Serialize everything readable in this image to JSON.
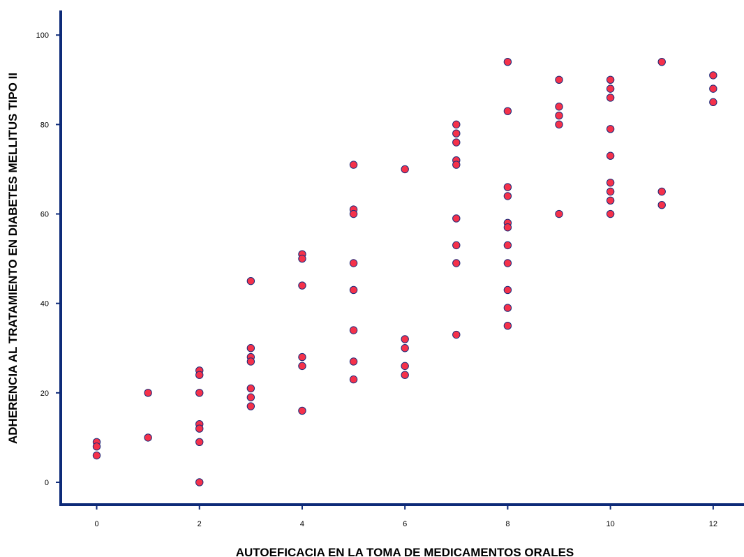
{
  "chart_data": {
    "type": "scatter",
    "title": "",
    "xlabel": "AUTOEFICACIA EN LA TOMA DE MEDICAMENTOS ORALES",
    "ylabel": "ADHERENCIA AL TRATAMIENTO EN DIABETES MELLITUS TIPO II",
    "xlim": [
      -0.7,
      12.6
    ],
    "ylim": [
      -5,
      105.5
    ],
    "xticks": [
      0,
      2,
      4,
      6,
      8,
      10,
      12
    ],
    "yticks": [
      0,
      20,
      40,
      60,
      80,
      100
    ],
    "xtick_labels": [
      "0",
      "2",
      "4",
      "6",
      "8",
      "10",
      "12"
    ],
    "ytick_labels": [
      "0",
      "20",
      "40",
      "60",
      "80",
      "100"
    ],
    "grid": false,
    "legend": "none",
    "marker_color": "#f5314a",
    "marker_edge_color": "#1b2a7a",
    "axis_color": "#0d2a78",
    "points": [
      [
        0,
        9
      ],
      [
        0,
        8
      ],
      [
        0,
        6
      ],
      [
        1,
        20
      ],
      [
        1,
        10
      ],
      [
        2,
        25
      ],
      [
        2,
        24
      ],
      [
        2,
        20
      ],
      [
        2,
        13
      ],
      [
        2,
        12
      ],
      [
        2,
        9
      ],
      [
        2,
        0
      ],
      [
        3,
        45
      ],
      [
        3,
        30
      ],
      [
        3,
        28
      ],
      [
        3,
        27
      ],
      [
        3,
        21
      ],
      [
        3,
        19
      ],
      [
        3,
        17
      ],
      [
        4,
        51
      ],
      [
        4,
        50
      ],
      [
        4,
        44
      ],
      [
        4,
        28
      ],
      [
        4,
        26
      ],
      [
        4,
        16
      ],
      [
        5,
        71
      ],
      [
        5,
        61
      ],
      [
        5,
        60
      ],
      [
        5,
        49
      ],
      [
        5,
        43
      ],
      [
        5,
        34
      ],
      [
        5,
        27
      ],
      [
        5,
        23
      ],
      [
        6,
        70
      ],
      [
        6,
        32
      ],
      [
        6,
        30
      ],
      [
        6,
        26
      ],
      [
        6,
        24
      ],
      [
        7,
        80
      ],
      [
        7,
        78
      ],
      [
        7,
        76
      ],
      [
        7,
        72
      ],
      [
        7,
        71
      ],
      [
        7,
        59
      ],
      [
        7,
        53
      ],
      [
        7,
        49
      ],
      [
        7,
        33
      ],
      [
        8,
        94
      ],
      [
        8,
        83
      ],
      [
        8,
        66
      ],
      [
        8,
        64
      ],
      [
        8,
        58
      ],
      [
        8,
        57
      ],
      [
        8,
        53
      ],
      [
        8,
        49
      ],
      [
        8,
        43
      ],
      [
        8,
        39
      ],
      [
        8,
        35
      ],
      [
        9,
        90
      ],
      [
        9,
        84
      ],
      [
        9,
        82
      ],
      [
        9,
        80
      ],
      [
        9,
        60
      ],
      [
        10,
        90
      ],
      [
        10,
        88
      ],
      [
        10,
        86
      ],
      [
        10,
        79
      ],
      [
        10,
        73
      ],
      [
        10,
        67
      ],
      [
        10,
        65
      ],
      [
        10,
        63
      ],
      [
        10,
        60
      ],
      [
        11,
        94
      ],
      [
        11,
        65
      ],
      [
        11,
        62
      ],
      [
        12,
        91
      ],
      [
        12,
        88
      ],
      [
        12,
        85
      ]
    ]
  }
}
